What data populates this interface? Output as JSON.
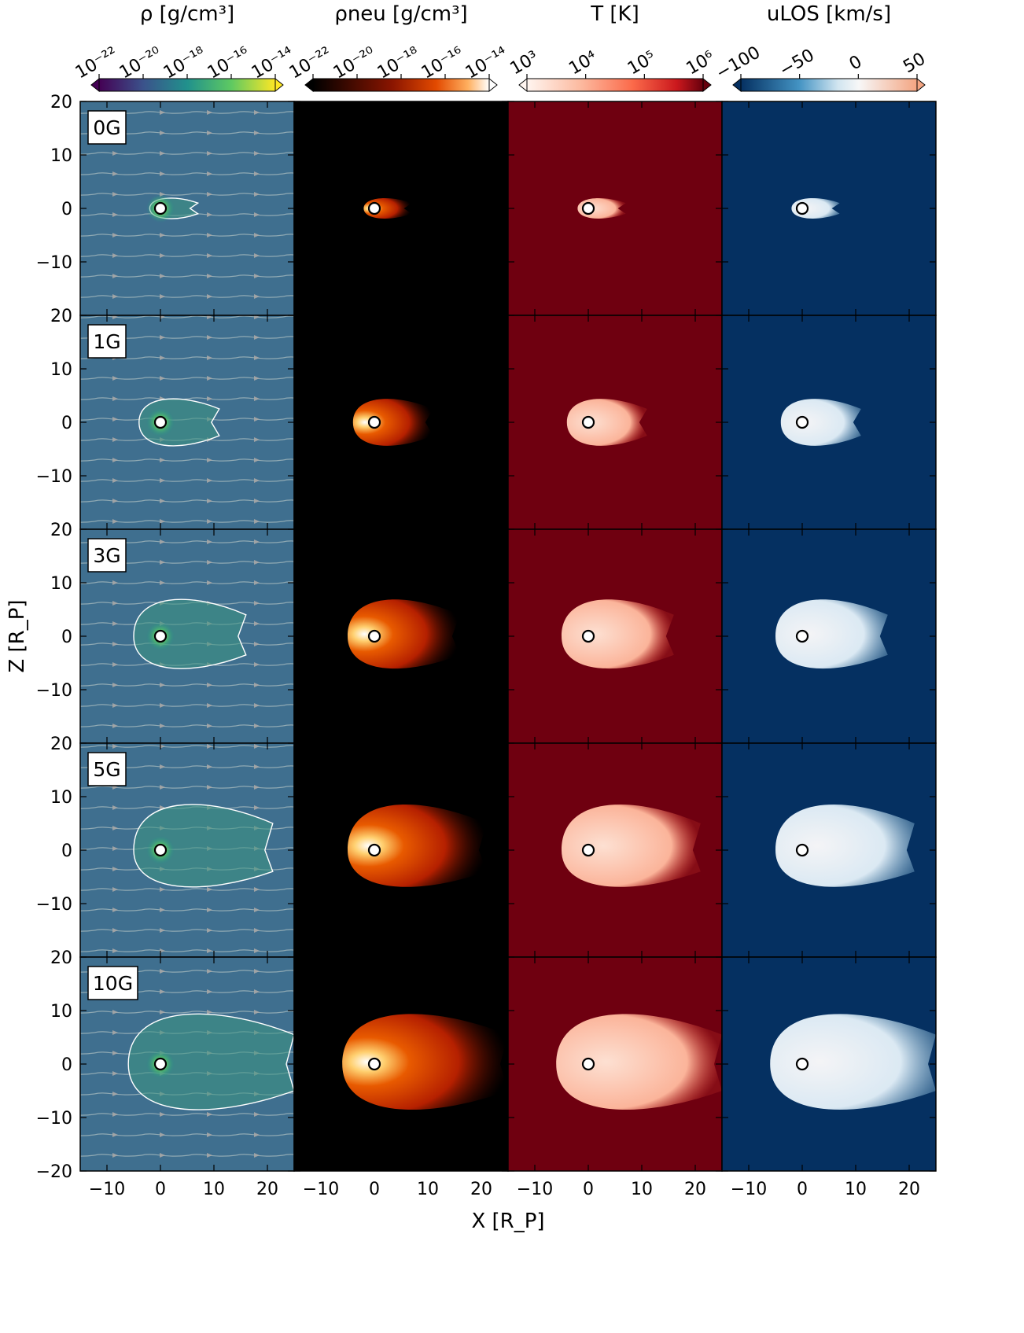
{
  "figure": {
    "xlabel": "X [R_P]",
    "ylabel": "Z [R_P]",
    "columns": [
      {
        "quantity": "density",
        "colorbar_label": "ρ [g/cm³]",
        "colormap": "viridis",
        "tick_labels": [
          "10⁻²²",
          "10⁻²⁰",
          "10⁻¹⁸",
          "10⁻¹⁶",
          "10⁻¹⁴"
        ],
        "range": [
          1e-22,
          1e-14
        ],
        "scale": "log",
        "overlays": [
          "streamlines",
          "white-contour"
        ]
      },
      {
        "quantity": "neutral density",
        "colorbar_label": "ρneu [g/cm³]",
        "colormap": "gist_heat",
        "tick_labels": [
          "10⁻²²",
          "10⁻²⁰",
          "10⁻¹⁸",
          "10⁻¹⁶",
          "10⁻¹⁴"
        ],
        "range": [
          1e-22,
          1e-14
        ],
        "scale": "log"
      },
      {
        "quantity": "temperature",
        "colorbar_label": "T [K]",
        "colormap": "Reds",
        "tick_labels": [
          "10³",
          "10⁴",
          "10⁵",
          "10⁶"
        ],
        "range": [
          1000.0,
          1000000.0
        ],
        "scale": "log"
      },
      {
        "quantity": "line-of-sight velocity",
        "colorbar_label": "uLOS [km/s]",
        "colormap": "RdBu_r",
        "tick_labels": [
          "−100",
          "−50",
          "0",
          "50"
        ],
        "range": [
          -100,
          50
        ],
        "scale": "linear"
      }
    ],
    "rows": [
      {
        "label": "0G",
        "field_G": 0,
        "cloud_extent_x": [
          -2,
          7
        ],
        "cloud_extent_z": [
          -2,
          2
        ]
      },
      {
        "label": "1G",
        "field_G": 1,
        "cloud_extent_x": [
          -4,
          11
        ],
        "cloud_extent_z": [
          -5,
          5
        ]
      },
      {
        "label": "3G",
        "field_G": 3,
        "cloud_extent_x": [
          -5,
          16
        ],
        "cloud_extent_z": [
          -7,
          8
        ]
      },
      {
        "label": "5G",
        "field_G": 5,
        "cloud_extent_x": [
          -5,
          21
        ],
        "cloud_extent_z": [
          -8,
          10
        ]
      },
      {
        "label": "10G",
        "field_G": 10,
        "cloud_extent_x": [
          -6,
          25
        ],
        "cloud_extent_z": [
          -10,
          11
        ]
      }
    ],
    "x_ticks": [
      "−10",
      "0",
      "10",
      "20"
    ],
    "z_ticks": [
      "20",
      "10",
      "0",
      "−10",
      "−20"
    ],
    "xlim": [
      -15,
      25
    ],
    "zlim": [
      -20,
      20
    ],
    "colors": {
      "viridis_bg": "#3f6f8f",
      "heat_bg": "#000000",
      "reds_bg": "#6f0010",
      "rdbu_bg": "#053061"
    }
  },
  "chart_data": {
    "type": "heatmap",
    "title": "",
    "xlabel": "X [R_P]",
    "ylabel": "Z [R_P]",
    "xlim": [
      -15,
      25
    ],
    "ylim": [
      -20,
      20
    ],
    "panels_grid": [
      5,
      4
    ],
    "row_labels": [
      "0G",
      "1G",
      "3G",
      "5G",
      "10G"
    ],
    "column_quantities": [
      "ρ [g/cm³]",
      "ρneu [g/cm³]",
      "T [K]",
      "uLOS [km/s]"
    ],
    "planet_position": [
      0,
      0
    ]
  }
}
